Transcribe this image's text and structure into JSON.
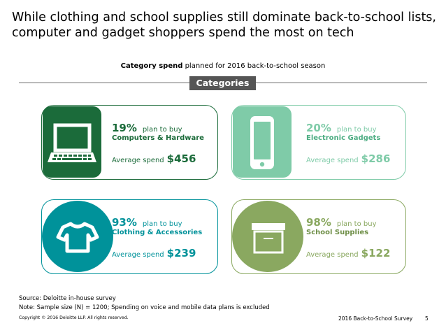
{
  "title": "While clothing and school supplies still dominate back-to-school lists, computer and gadget shoppers spend the most on tech",
  "subtitle": {
    "bold": "Category spend",
    "rest": " planned for 2016 back-to-school season"
  },
  "categories_label": "Categories",
  "cards": [
    {
      "percent": "19%",
      "plan_text": "plan to buy",
      "category": "Computers & Hardware",
      "avg_label": "Average spend",
      "amount": "$456",
      "icon": "laptop-icon",
      "color": "#1b6b3a"
    },
    {
      "percent": "20%",
      "plan_text": "plan to buy",
      "category": "Electronic Gadgets",
      "avg_label": "Average spend",
      "amount": "$286",
      "icon": "phone-icon",
      "color": "#7fcba8"
    },
    {
      "percent": "93%",
      "plan_text": "plan to buy",
      "category": "Clothing & Accessories",
      "avg_label": "Average spend",
      "amount": "$239",
      "icon": "tshirt-icon",
      "color": "#00929a"
    },
    {
      "percent": "98%",
      "plan_text": "plan to buy",
      "category": "School Supplies",
      "avg_label": "Average spend",
      "amount": "$122",
      "icon": "box-icon",
      "color": "#8aa860"
    }
  ],
  "footer": {
    "source": "Source: Deloitte in-house survey",
    "note": "Note:  Sample size (N) = 1200; Spending on voice and mobile data plans is excluded",
    "copyright": "Copyright © 2016 Deloitte LLP. All rights reserved.",
    "survey": "2016 Back-to-School Survey",
    "page": "5"
  }
}
